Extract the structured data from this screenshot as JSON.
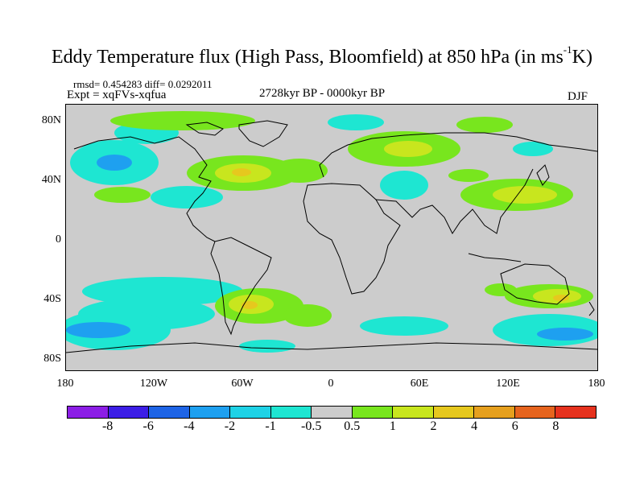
{
  "title": {
    "main": "Eddy Temperature flux (High Pass, Bloomfield) at 850 hPa (in ms",
    "sup": "-1",
    "unit_tail": "K)"
  },
  "stats": "rmsd= 0.454283 diff= 0.0292011",
  "experiment": "Expt = xqFVs-xqfua",
  "period": "2728kyr BP - 0000kyr BP",
  "season": "DJF",
  "map": {
    "background_color": "#cccccc",
    "y_labels": [
      "80N",
      "40N",
      "0",
      "40S",
      "80S"
    ],
    "x_labels": [
      "180",
      "120W",
      "60W",
      "0",
      "60E",
      "120E",
      "180"
    ]
  },
  "colorbar": {
    "colors": [
      "#8c1ee6",
      "#3c1ee6",
      "#1e64e6",
      "#1ea0f0",
      "#1ed2e6",
      "#1ee6d2",
      "#cccccc",
      "#78e61e",
      "#c8e61e",
      "#e6c81e",
      "#e6a01e",
      "#e6641e",
      "#e6321e"
    ],
    "labels": [
      "-8",
      "-6",
      "-4",
      "-2",
      "-1",
      "-0.5",
      "0.5",
      "1",
      "2",
      "4",
      "6",
      "8"
    ]
  }
}
